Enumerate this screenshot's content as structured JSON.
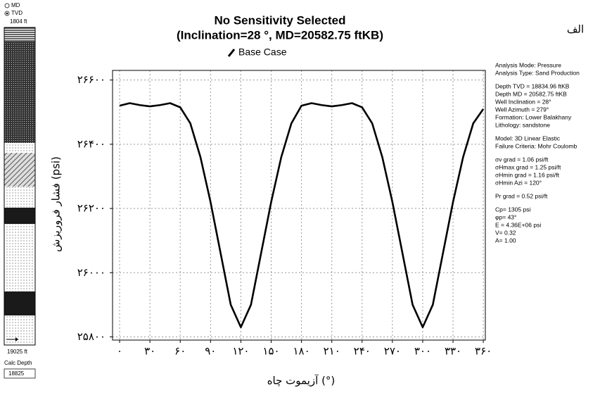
{
  "chart_data": {
    "type": "line",
    "title": "No Sensitivity Selected",
    "subtitle": "(Inclination=28 °, MD=20582.75 ftKB)",
    "corner_label": "الف",
    "x_label": "آزیموت چاه (°)",
    "y_label": "فشار فروریزش (psi)",
    "x": [
      0,
      10,
      20,
      30,
      40,
      50,
      60,
      70,
      80,
      90,
      100,
      110,
      120,
      130,
      140,
      150,
      160,
      170,
      180,
      190,
      200,
      210,
      220,
      230,
      240,
      250,
      260,
      270,
      280,
      290,
      300,
      310,
      320,
      330,
      340,
      350,
      360
    ],
    "series": [
      {
        "name": "Base Case",
        "color": "#000000",
        "values": [
          26520,
          26528,
          26522,
          26518,
          26522,
          26528,
          26515,
          26465,
          26360,
          26220,
          26060,
          25900,
          25830,
          25900,
          26060,
          26220,
          26360,
          26465,
          26520,
          26528,
          26522,
          26518,
          26522,
          26528,
          26515,
          26465,
          26360,
          26220,
          26060,
          25900,
          25830,
          25900,
          26060,
          26220,
          26360,
          26465,
          26510
        ]
      }
    ],
    "xlim": [
      -7,
      362
    ],
    "ylim": [
      25790,
      26630
    ],
    "xticks": [
      {
        "value": 0,
        "label": "۰"
      },
      {
        "value": 30,
        "label": "۳۰"
      },
      {
        "value": 60,
        "label": "۶۰"
      },
      {
        "value": 90,
        "label": "۹۰"
      },
      {
        "value": 120,
        "label": "۱۲۰"
      },
      {
        "value": 150,
        "label": "۱۵۰"
      },
      {
        "value": 180,
        "label": "۱۸۰"
      },
      {
        "value": 210,
        "label": "۲۱۰"
      },
      {
        "value": 240,
        "label": "۲۴۰"
      },
      {
        "value": 270,
        "label": "۲۷۰"
      },
      {
        "value": 300,
        "label": "۳۰۰"
      },
      {
        "value": 330,
        "label": "۳۳۰"
      },
      {
        "value": 360,
        "label": "۳۶۰"
      }
    ],
    "yticks": [
      {
        "value": 25800,
        "label": "۲۵۸۰۰"
      },
      {
        "value": 26000,
        "label": "۲۶۰۰۰"
      },
      {
        "value": 26200,
        "label": "۲۶۲۰۰"
      },
      {
        "value": 26400,
        "label": "۲۶۴۰۰"
      },
      {
        "value": 26600,
        "label": "۲۶۶۰۰"
      }
    ],
    "grid": true
  },
  "info": [
    "Analysis Mode: Pressure",
    "Analysis Type: Sand Production",
    "Depth TVD = 18834.96 ftKB",
    "Depth MD = 20582.75 ftKB",
    "Well Inclination = 28°",
    "Well Azimuth = 279°",
    "Formation: Lower Balakhany",
    "Lithology: sandstone",
    "Model: 3D Linear Elastic",
    "Failure Criteria: Mohr Coulomb",
    "σv grad = 1.06 psi/ft",
    "σHmax grad = 1.25 psi/ft",
    "σHmin grad = 1.16 psi/ft",
    "σHmin Azi = 120°",
    "Pr grad = 0.52 psi/ft",
    "Cp= 1305 psi",
    "φp= 43°",
    "E = 4.36E+06 psi",
    "V= 0.32",
    "A= 1.00"
  ],
  "panel": {
    "md": "MD",
    "tvd": "TVD",
    "top_depth": "1804 ft",
    "bottom_depth": "19025 ft",
    "calc_label": "Calc Depth",
    "calc_value": "18825"
  }
}
